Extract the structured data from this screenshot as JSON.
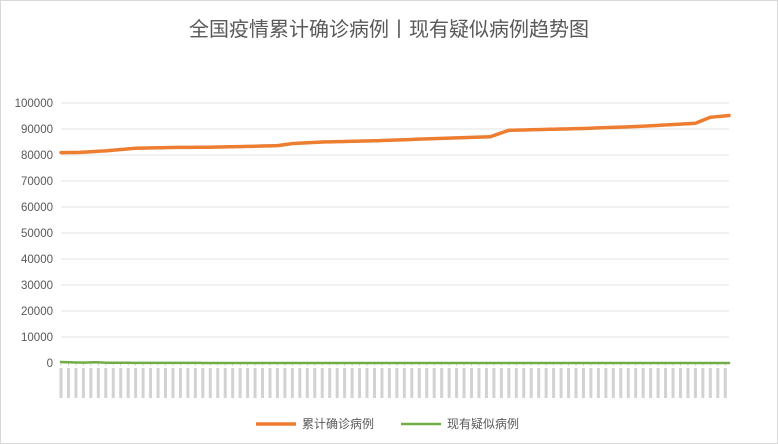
{
  "chart_data": {
    "type": "line",
    "title": "全国疫情累计确诊病例丨现有疑似病例趋势图",
    "xlabel": "",
    "ylabel": "",
    "ylim": [
      0,
      100000
    ],
    "yticks": [
      "0",
      "10000",
      "20000",
      "30000",
      "40000",
      "50000",
      "60000",
      "70000",
      "80000",
      "90000",
      "100000"
    ],
    "grid": "horizontal",
    "legend_position": "bottom",
    "point_count": 180,
    "series": [
      {
        "name": "累计确诊病例",
        "color": "#ed7d31",
        "keypoints": [
          [
            0,
            80900
          ],
          [
            5,
            81000
          ],
          [
            12,
            81600
          ],
          [
            20,
            82600
          ],
          [
            30,
            82900
          ],
          [
            40,
            83000
          ],
          [
            50,
            83300
          ],
          [
            58,
            83600
          ],
          [
            62,
            84400
          ],
          [
            70,
            85000
          ],
          [
            85,
            85500
          ],
          [
            100,
            86300
          ],
          [
            115,
            87000
          ],
          [
            120,
            89500
          ],
          [
            140,
            90200
          ],
          [
            155,
            91000
          ],
          [
            170,
            92200
          ],
          [
            174,
            94500
          ],
          [
            179,
            95200
          ]
        ]
      },
      {
        "name": "现有疑似病例",
        "color": "#70ad47",
        "keypoints": [
          [
            0,
            400
          ],
          [
            3,
            250
          ],
          [
            6,
            150
          ],
          [
            9,
            300
          ],
          [
            12,
            120
          ],
          [
            20,
            60
          ],
          [
            40,
            20
          ],
          [
            179,
            10
          ]
        ]
      }
    ]
  }
}
